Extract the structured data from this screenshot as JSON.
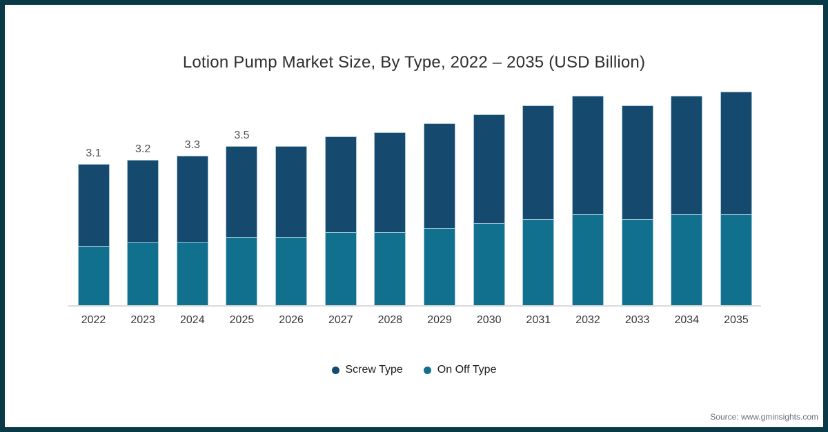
{
  "frame": {
    "border_color": "#0a3a47",
    "background": "#ffffff"
  },
  "title": "Lotion Pump Market Size, By Type, 2022 – 2035 (USD Billion)",
  "source": "Source: www.gminsights.com",
  "legend": [
    {
      "label": "Screw Type",
      "color": "#15496e"
    },
    {
      "label": "On Off Type",
      "color": "#12708f"
    }
  ],
  "chart_data": {
    "type": "bar",
    "stacked": true,
    "title": "Lotion Pump Market Size, By Type, 2022 – 2035 (USD Billion)",
    "value_unit": "USD Billion",
    "xlabel": "",
    "ylabel": "",
    "grid": false,
    "legend_position": "bottom",
    "axis_color": "#d9dadc",
    "categories": [
      "2022",
      "2023",
      "2024",
      "2025",
      "2026",
      "2027",
      "2028",
      "2029",
      "2030",
      "2031",
      "2032",
      "2033",
      "2034",
      "2035"
    ],
    "series": [
      {
        "name": "Screw Type",
        "color": "#15496e",
        "values": [
          1.8,
          1.8,
          1.9,
          2.0,
          2.0,
          2.1,
          2.2,
          2.3,
          2.4,
          2.5,
          2.6,
          2.5,
          2.6,
          2.7
        ]
      },
      {
        "name": "On Off Type",
        "color": "#12708f",
        "values": [
          1.3,
          1.4,
          1.4,
          1.5,
          1.5,
          1.6,
          1.6,
          1.7,
          1.8,
          1.9,
          2.0,
          1.9,
          2.0,
          2.0
        ]
      }
    ],
    "totals": [
      3.1,
      3.2,
      3.3,
      3.5,
      3.5,
      3.7,
      3.8,
      4.0,
      4.2,
      4.4,
      4.6,
      4.4,
      4.6,
      4.7
    ],
    "data_labels": [
      "3.1",
      "3.2",
      "3.3",
      "3.5",
      "",
      "",
      "",
      "",
      "",
      "",
      "",
      "",
      "",
      ""
    ]
  }
}
